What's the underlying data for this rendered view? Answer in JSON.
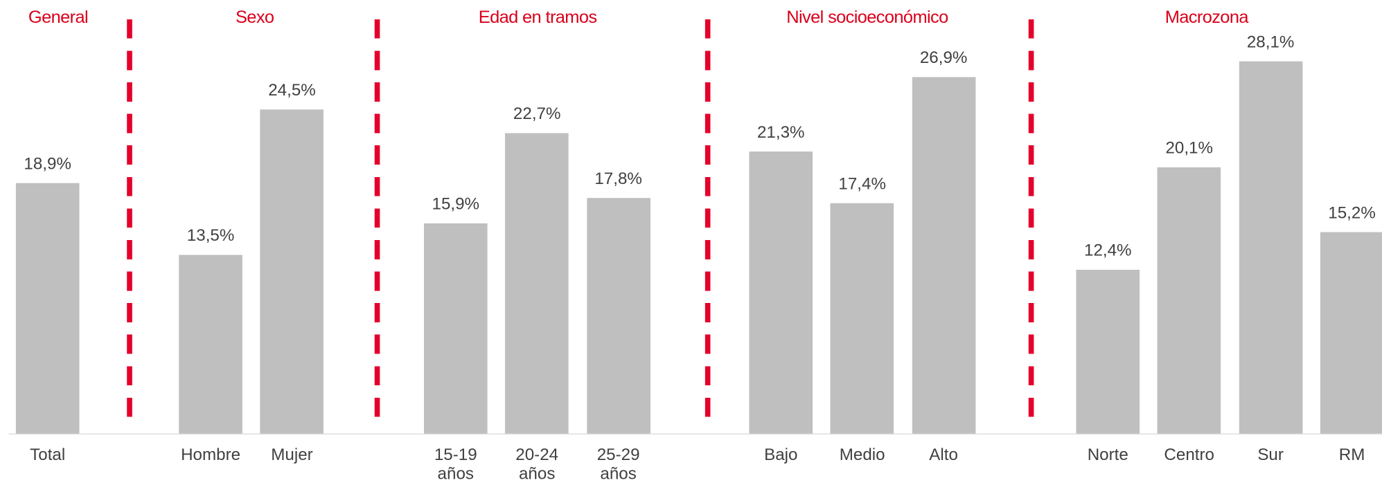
{
  "chart_data": {
    "type": "bar",
    "color": "#bfbfbf",
    "separator_color": "#e4002b",
    "header_color": "#d9001b",
    "groups": [
      {
        "name": "General",
        "categories": [
          "Total"
        ],
        "values": [
          18.9
        ],
        "value_labels": [
          "18,9%"
        ]
      },
      {
        "name": "Sexo",
        "categories": [
          "Hombre",
          "Mujer"
        ],
        "values": [
          13.5,
          24.5
        ],
        "value_labels": [
          "13,5%",
          "24,5%"
        ]
      },
      {
        "name": "Edad en tramos",
        "categories": [
          "15-19 años",
          "20-24 años",
          "25-29 años"
        ],
        "values": [
          15.9,
          22.7,
          17.8
        ],
        "value_labels": [
          "15,9%",
          "22,7%",
          "17,8%"
        ]
      },
      {
        "name": "Nivel socioeconómico",
        "categories": [
          "Bajo",
          "Medio",
          "Alto"
        ],
        "values": [
          21.3,
          17.4,
          26.9
        ],
        "value_labels": [
          "21,3%",
          "17,4%",
          "26,9%"
        ]
      },
      {
        "name": "Macrozona",
        "categories": [
          "Norte",
          "Centro",
          "Sur",
          "RM"
        ],
        "values": [
          12.4,
          20.1,
          28.1,
          15.2
        ],
        "value_labels": [
          "12,4%",
          "20,1%",
          "28,1%",
          "15,2%"
        ]
      }
    ]
  }
}
